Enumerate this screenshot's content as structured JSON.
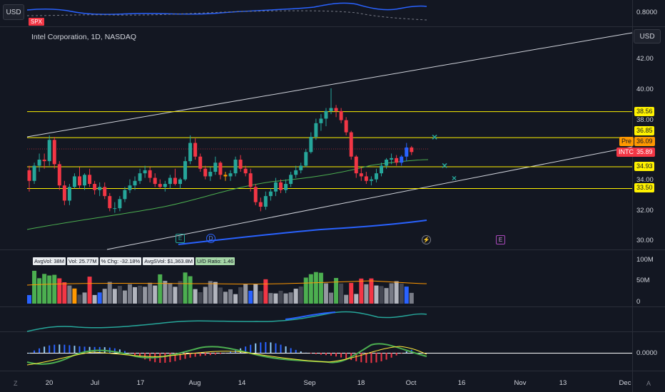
{
  "toolbar": {
    "currency_top": "USD",
    "currency_main": "USD"
  },
  "compare": {
    "symbol": "SPX",
    "value_label": "0.8000"
  },
  "header": {
    "title": "Intel Corporation, 1D, NASDAQ"
  },
  "price_axis": {
    "labels": [
      "42.00",
      "40.00",
      "38.00",
      "34.00",
      "32.00",
      "30.00"
    ]
  },
  "price_tags": {
    "lines": [
      "38.56",
      "36.85",
      "34.93",
      "33.50"
    ],
    "pre_label": "Pre",
    "pre_value": "36.09",
    "ticker_label": "INTC",
    "ticker_value": "35.89"
  },
  "events": {
    "earnings": "E",
    "dividend": "D",
    "economic": "E",
    "split": "⚡"
  },
  "volume_stats": {
    "avg_vol": "AvgVol: 38M",
    "vol": "Vol: 25.77M",
    "pct_chg": "% Chg: -32.18%",
    "avg_svol": "AvgSVol: $1,363.8M",
    "ud_ratio": "U/D Ratio: 1.46"
  },
  "volume_axis": {
    "labels": [
      "100M",
      "50M",
      "0"
    ]
  },
  "oscillator_axis": {
    "label": "0.0000"
  },
  "time_axis": {
    "labels": [
      "20",
      "Jul",
      "17",
      "Aug",
      "14",
      "Sep",
      "18",
      "Oct",
      "16",
      "Nov",
      "13",
      "Dec"
    ]
  },
  "corner_labels": {
    "left": "Z",
    "right": "A"
  },
  "colors": {
    "up": "#26a69a",
    "down": "#f23645",
    "level_line": "#fff200",
    "ma": "#4caf50",
    "long_ma": "#2962ff",
    "channel": "#d1d4dc"
  },
  "chart_data": {
    "type": "candlestick",
    "x_labels": [
      "20",
      "Jul",
      "17",
      "Aug",
      "14",
      "Sep",
      "18",
      "Oct"
    ],
    "candles": [
      [
        34.7,
        35.0,
        33.3,
        34.0
      ],
      [
        34.0,
        35.2,
        33.8,
        35.0
      ],
      [
        35.0,
        35.8,
        34.6,
        35.4
      ],
      [
        35.4,
        35.8,
        34.8,
        35.3
      ],
      [
        35.3,
        37.0,
        35.0,
        36.7
      ],
      [
        36.7,
        36.9,
        34.8,
        35.1
      ],
      [
        35.1,
        35.3,
        33.4,
        33.7
      ],
      [
        33.7,
        34.0,
        32.4,
        32.7
      ],
      [
        32.7,
        33.8,
        32.4,
        33.6
      ],
      [
        33.6,
        34.5,
        33.5,
        34.3
      ],
      [
        34.3,
        34.9,
        33.5,
        33.7
      ],
      [
        33.7,
        34.5,
        33.4,
        34.4
      ],
      [
        34.4,
        34.8,
        33.6,
        33.8
      ],
      [
        33.8,
        34.0,
        33.1,
        33.4
      ],
      [
        33.4,
        33.9,
        33.0,
        33.6
      ],
      [
        33.6,
        33.9,
        32.8,
        33.0
      ],
      [
        33.0,
        33.2,
        32.0,
        32.2
      ],
      [
        32.2,
        32.6,
        31.9,
        32.2
      ],
      [
        32.2,
        33.0,
        32.0,
        32.8
      ],
      [
        32.8,
        33.6,
        32.6,
        33.4
      ],
      [
        33.4,
        34.1,
        33.2,
        33.7
      ],
      [
        33.7,
        34.3,
        33.4,
        34.0
      ],
      [
        34.0,
        34.8,
        33.8,
        34.5
      ],
      [
        34.5,
        35.0,
        34.2,
        34.7
      ],
      [
        34.7,
        34.9,
        33.9,
        34.2
      ],
      [
        34.2,
        34.5,
        33.6,
        33.8
      ],
      [
        33.8,
        34.1,
        33.5,
        33.6
      ],
      [
        33.6,
        34.0,
        33.3,
        33.8
      ],
      [
        33.8,
        34.4,
        33.5,
        34.2
      ],
      [
        34.2,
        34.8,
        33.7,
        33.8
      ],
      [
        33.8,
        34.2,
        33.5,
        34.1
      ],
      [
        34.1,
        35.6,
        34.0,
        35.3
      ],
      [
        35.3,
        37.0,
        35.1,
        36.5
      ],
      [
        36.5,
        36.8,
        35.4,
        35.6
      ],
      [
        35.6,
        35.8,
        34.6,
        34.8
      ],
      [
        34.8,
        35.0,
        34.1,
        34.3
      ],
      [
        34.3,
        34.9,
        34.0,
        34.6
      ],
      [
        34.6,
        35.6,
        34.4,
        35.2
      ],
      [
        35.2,
        35.3,
        34.1,
        34.4
      ],
      [
        34.4,
        34.6,
        34.0,
        34.3
      ],
      [
        34.3,
        34.7,
        34.0,
        34.5
      ],
      [
        34.5,
        35.6,
        34.3,
        35.4
      ],
      [
        35.4,
        35.7,
        34.6,
        34.8
      ],
      [
        34.8,
        35.0,
        34.3,
        34.5
      ],
      [
        34.5,
        34.8,
        33.3,
        33.6
      ],
      [
        33.6,
        33.8,
        32.4,
        32.6
      ],
      [
        32.6,
        32.9,
        32.0,
        32.3
      ],
      [
        32.3,
        33.3,
        32.1,
        33.0
      ],
      [
        33.0,
        33.5,
        32.7,
        33.3
      ],
      [
        33.3,
        34.2,
        33.0,
        33.9
      ],
      [
        33.9,
        34.1,
        33.2,
        33.4
      ],
      [
        33.4,
        34.1,
        33.2,
        33.8
      ],
      [
        33.8,
        34.6,
        33.6,
        34.4
      ],
      [
        34.4,
        35.0,
        34.2,
        34.7
      ],
      [
        34.7,
        35.2,
        34.5,
        35.0
      ],
      [
        35.0,
        36.1,
        34.9,
        35.9
      ],
      [
        35.9,
        37.2,
        35.8,
        36.9
      ],
      [
        36.9,
        38.1,
        36.7,
        37.8
      ],
      [
        37.8,
        38.4,
        37.3,
        38.1
      ],
      [
        38.1,
        38.8,
        37.6,
        38.6
      ],
      [
        38.6,
        40.1,
        38.4,
        38.8
      ],
      [
        38.8,
        39.0,
        38.2,
        38.6
      ],
      [
        38.6,
        38.8,
        37.8,
        38.0
      ],
      [
        38.0,
        38.2,
        37.0,
        37.2
      ],
      [
        37.2,
        37.3,
        35.4,
        35.6
      ],
      [
        35.6,
        35.7,
        34.2,
        34.5
      ],
      [
        34.5,
        34.9,
        34.0,
        34.3
      ],
      [
        34.3,
        34.6,
        33.8,
        34.0
      ],
      [
        34.0,
        34.3,
        33.7,
        34.1
      ],
      [
        34.1,
        34.8,
        33.9,
        34.5
      ],
      [
        34.5,
        35.2,
        34.3,
        35.0
      ],
      [
        35.0,
        35.5,
        34.8,
        35.4
      ],
      [
        35.4,
        35.8,
        35.1,
        35.5
      ],
      [
        35.5,
        35.7,
        35.0,
        35.2
      ],
      [
        35.2,
        35.7,
        35.0,
        35.6
      ],
      [
        35.6,
        36.5,
        35.3,
        36.2
      ],
      [
        36.2,
        36.3,
        35.7,
        35.9
      ]
    ],
    "levels": [
      38.56,
      36.85,
      34.93,
      33.5
    ],
    "last_price": 35.89,
    "premarket": 36.09
  }
}
